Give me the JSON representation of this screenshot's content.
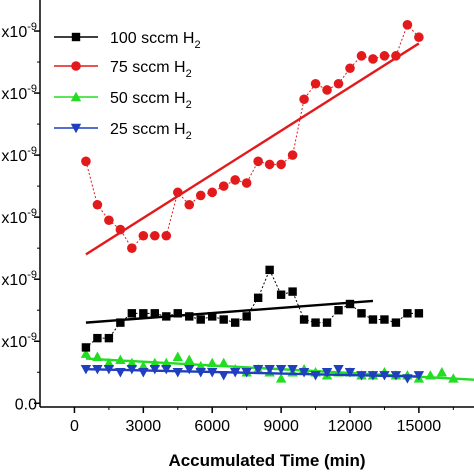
{
  "chart_data": {
    "type": "scatter",
    "title": "",
    "xlabel": "Accumulated Time (min)",
    "ylabel": "",
    "xlim": [
      -1500,
      17400
    ],
    "ylim": [
      -0.06,
      6.5
    ],
    "x_ticks": [
      0,
      3000,
      6000,
      9000,
      12000,
      15000
    ],
    "x_tick_labels": [
      "0",
      "3000",
      "6000",
      "9000",
      "12000",
      "15000"
    ],
    "y_ticks": [
      0,
      1,
      2,
      3,
      4,
      5,
      6
    ],
    "y_tick_labels": [
      "0.0",
      "x10",
      "x10",
      "x10",
      "x10",
      "x10",
      "x10"
    ],
    "y_tick_exponent": "-9",
    "legend_position": "top-left",
    "series": [
      {
        "name": "100 sccm H",
        "name_subscript": "2",
        "color": "#000000",
        "marker": "square",
        "connected": true,
        "x": [
          500,
          1000,
          1500,
          2000,
          2500,
          3000,
          3500,
          4000,
          4500,
          5000,
          5500,
          6000,
          6500,
          7000,
          7500,
          8000,
          8500,
          9000,
          9500,
          10000,
          10500,
          11000,
          11500,
          12000,
          12500,
          13000,
          13500,
          14000,
          14500,
          15000
        ],
        "y": [
          0.9,
          1.05,
          1.05,
          1.3,
          1.45,
          1.45,
          1.45,
          1.4,
          1.45,
          1.4,
          1.35,
          1.4,
          1.35,
          1.3,
          1.4,
          1.7,
          2.15,
          1.75,
          1.8,
          1.35,
          1.3,
          1.3,
          1.5,
          1.6,
          1.45,
          1.35,
          1.35,
          1.3,
          1.45,
          1.45
        ],
        "fit": {
          "x": [
            500,
            13000
          ],
          "y": [
            1.3,
            1.65
          ]
        }
      },
      {
        "name": "75 sccm H",
        "name_subscript": "2",
        "color": "#e31a1c",
        "marker": "circle",
        "connected": true,
        "x": [
          500,
          1000,
          1500,
          2000,
          2500,
          3000,
          3500,
          4000,
          4500,
          5000,
          5500,
          6000,
          6500,
          7000,
          7500,
          8000,
          8500,
          9000,
          9500,
          10000,
          10500,
          11000,
          11500,
          12000,
          12500,
          13000,
          13500,
          14000,
          14500,
          15000
        ],
        "y": [
          3.9,
          3.2,
          2.95,
          2.8,
          2.5,
          2.7,
          2.7,
          2.7,
          3.4,
          3.2,
          3.35,
          3.4,
          3.5,
          3.6,
          3.55,
          3.9,
          3.85,
          3.85,
          4.0,
          4.9,
          5.15,
          5.05,
          5.15,
          5.4,
          5.6,
          5.55,
          5.6,
          5.6,
          6.1,
          5.9
        ],
        "fit": {
          "x": [
            500,
            15000
          ],
          "y": [
            2.4,
            5.8
          ]
        }
      },
      {
        "name": "50 sccm H",
        "name_subscript": "2",
        "color": "#22dd22",
        "marker": "triangle-up",
        "connected": false,
        "x": [
          500,
          1000,
          1500,
          2000,
          2500,
          3000,
          3500,
          4000,
          4500,
          5000,
          5500,
          6000,
          6500,
          7000,
          7500,
          8000,
          8500,
          9000,
          9500,
          10000,
          10500,
          11000,
          11500,
          12000,
          12500,
          13000,
          13500,
          14000,
          14500,
          15000,
          15500,
          16000,
          16500
        ],
        "y": [
          0.8,
          0.75,
          0.65,
          0.7,
          0.65,
          0.6,
          0.65,
          0.65,
          0.75,
          0.7,
          0.6,
          0.65,
          0.65,
          0.55,
          0.5,
          0.55,
          0.5,
          0.4,
          0.5,
          0.55,
          0.5,
          0.45,
          0.5,
          0.5,
          0.45,
          0.45,
          0.5,
          0.45,
          0.45,
          0.4,
          0.45,
          0.5,
          0.4
        ],
        "fit": {
          "x": [
            500,
            17400
          ],
          "y": [
            0.72,
            0.38
          ]
        }
      },
      {
        "name": "25 sccm H",
        "name_subscript": "2",
        "color": "#1f3fbf",
        "marker": "triangle-down",
        "connected": false,
        "x": [
          500,
          1000,
          1500,
          2000,
          2500,
          3000,
          3500,
          4000,
          4500,
          5000,
          5500,
          6000,
          6500,
          7000,
          7500,
          8000,
          8500,
          9000,
          9500,
          10000,
          10500,
          11000,
          11500,
          12000,
          12500,
          13000,
          13500,
          14000,
          14500,
          15000
        ],
        "y": [
          0.55,
          0.55,
          0.55,
          0.5,
          0.55,
          0.5,
          0.55,
          0.55,
          0.5,
          0.55,
          0.5,
          0.5,
          0.45,
          0.5,
          0.5,
          0.55,
          0.55,
          0.55,
          0.55,
          0.5,
          0.45,
          0.5,
          0.55,
          0.5,
          0.45,
          0.45,
          0.45,
          0.45,
          0.4,
          0.45
        ],
        "fit": {
          "x": [
            500,
            15000
          ],
          "y": [
            0.55,
            0.43
          ]
        }
      }
    ]
  }
}
